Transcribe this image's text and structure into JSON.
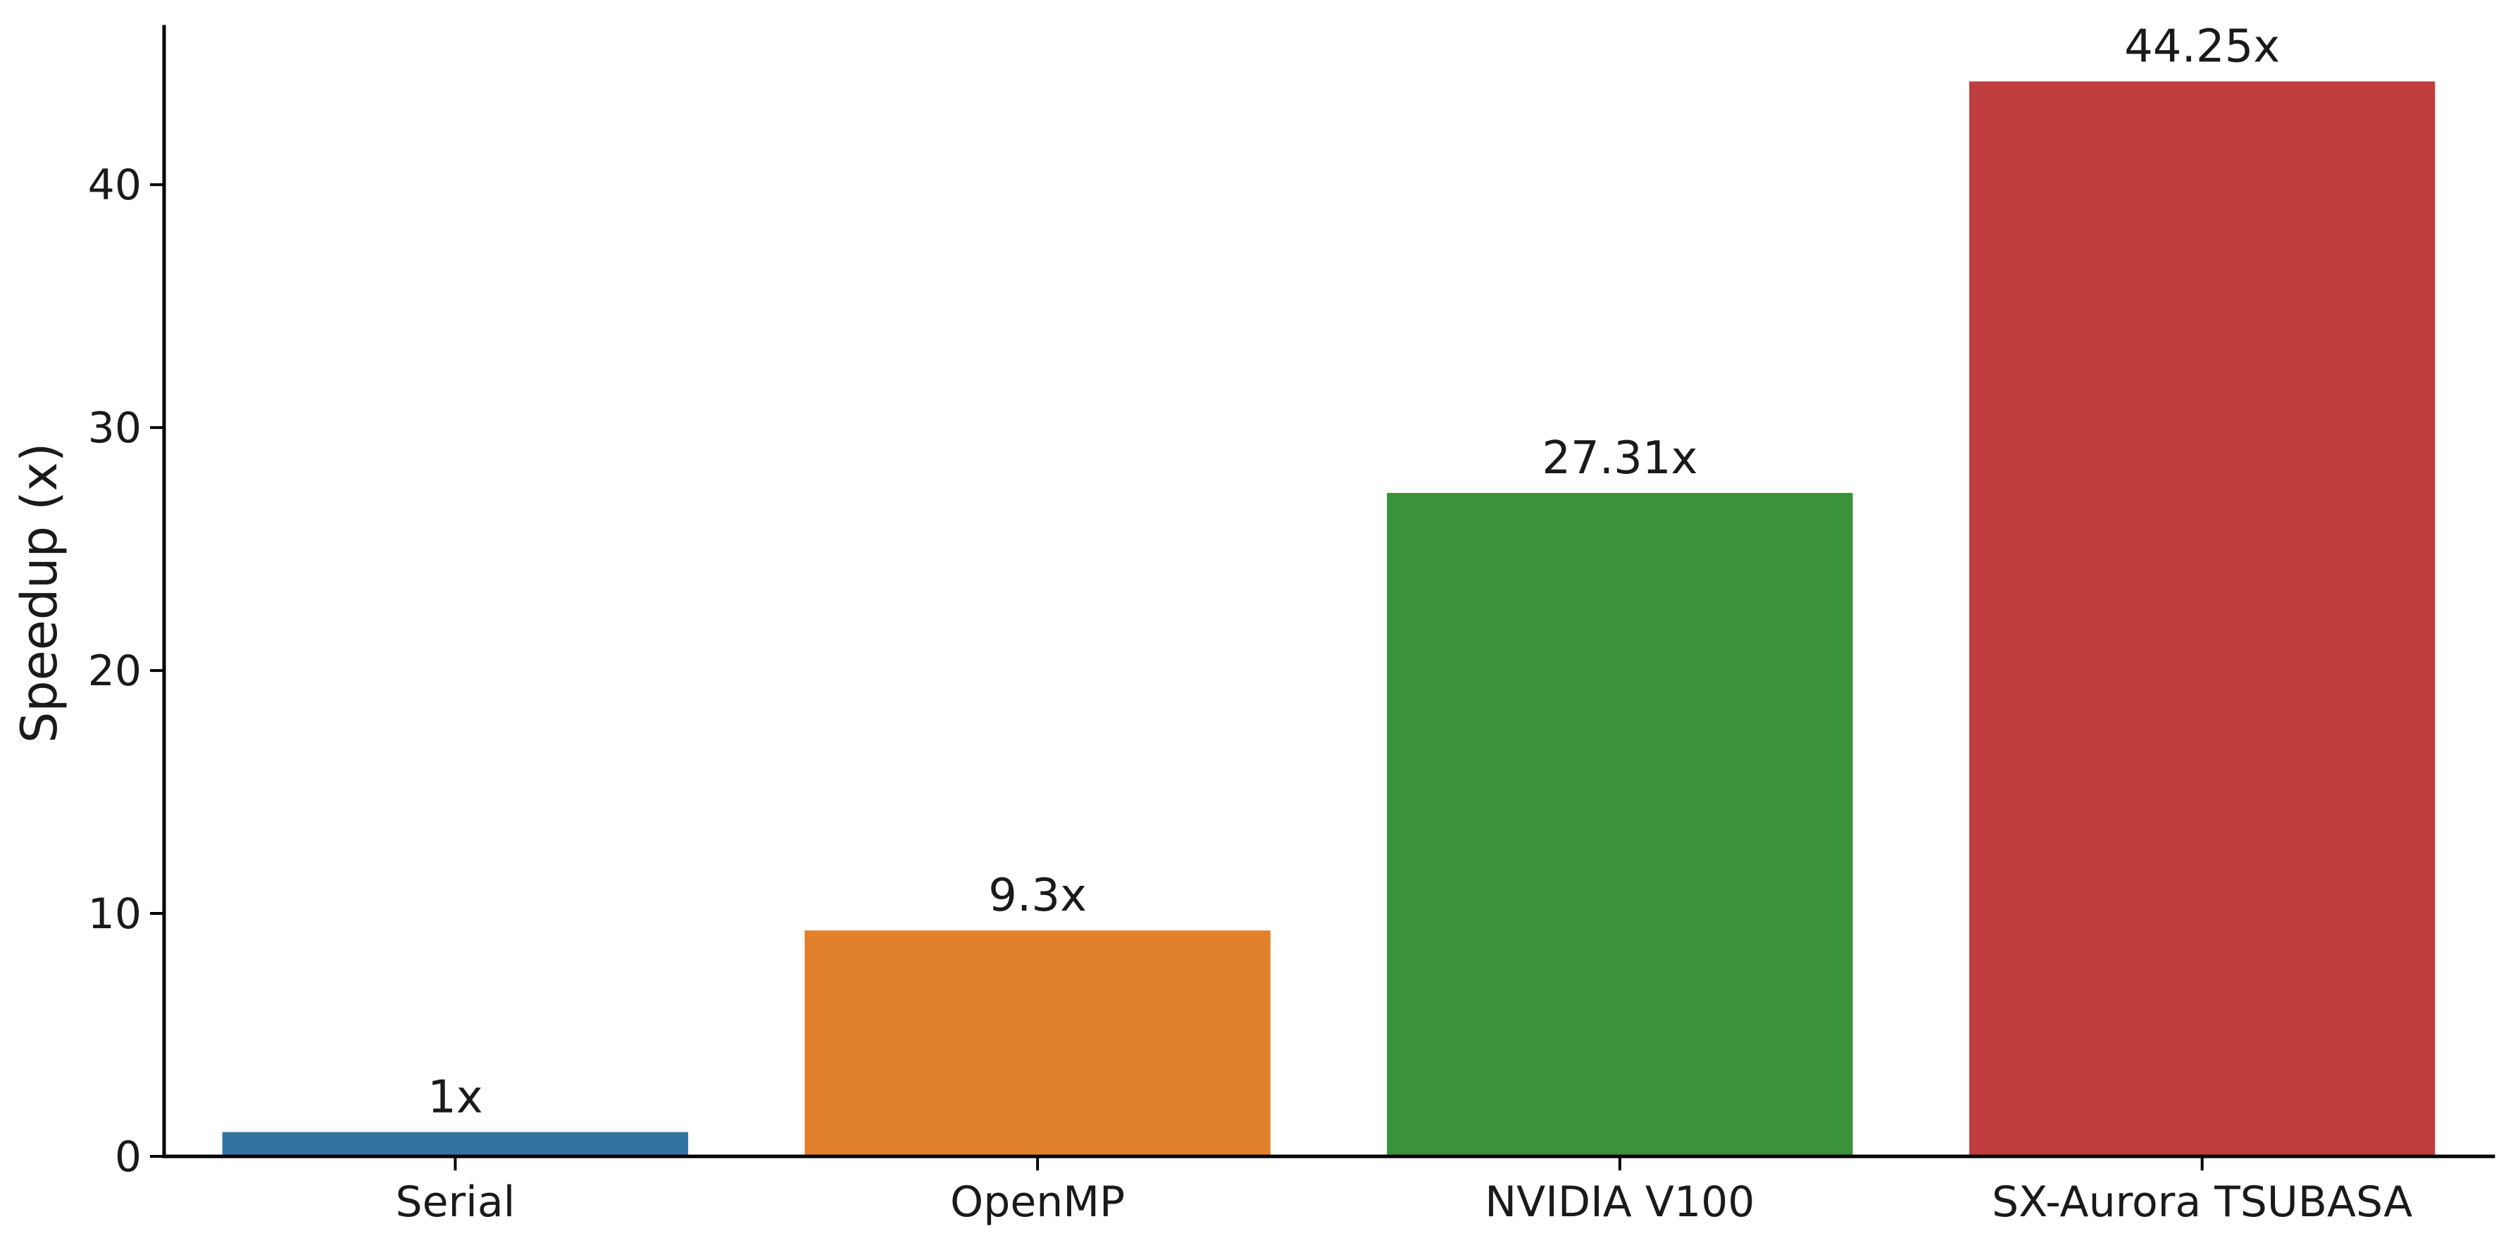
{
  "chart_data": {
    "type": "bar",
    "categories": [
      "Serial",
      "OpenMP",
      "NVIDIA V100",
      "SX-Aurora TSUBASA"
    ],
    "values": [
      1,
      9.3,
      27.31,
      44.25
    ],
    "data_labels": [
      "1x",
      "9.3x",
      "27.31x",
      "44.25x"
    ],
    "colors": [
      "#3274a1",
      "#e1812c",
      "#3a923a",
      "#c03d3e"
    ],
    "ylabel": "Speedup (x)",
    "xlabel": "",
    "ylim": [
      0,
      46.5
    ],
    "yticks": [
      0,
      10,
      20,
      30,
      40
    ],
    "grid": false,
    "legend": "none"
  }
}
